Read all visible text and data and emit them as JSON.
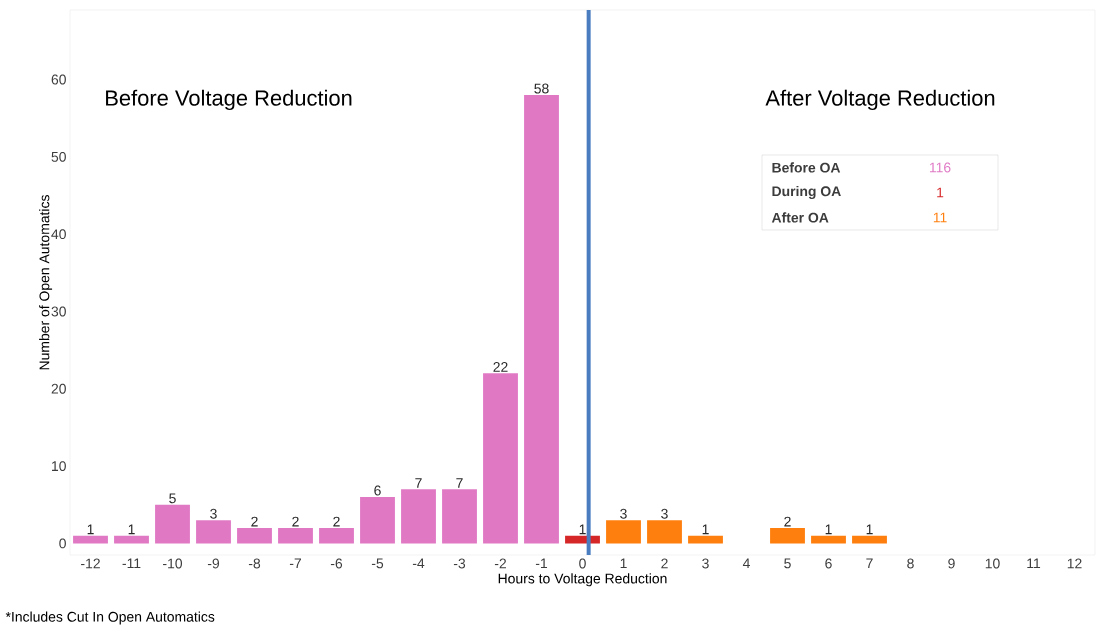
{
  "chart_data": {
    "type": "bar",
    "xlabel": "Hours to Voltage Reduction",
    "ylabel": "Number of Open Automatics",
    "x": [
      -12,
      -11,
      -10,
      -9,
      -8,
      -7,
      -6,
      -5,
      -4,
      -3,
      -2,
      -1,
      0,
      1,
      2,
      3,
      4,
      5,
      6,
      7
    ],
    "values": [
      1,
      1,
      5,
      3,
      2,
      2,
      2,
      6,
      7,
      7,
      22,
      58,
      1,
      3,
      3,
      1,
      null,
      2,
      1,
      1
    ],
    "colors": [
      "#e078c4",
      "#e078c4",
      "#e078c4",
      "#e078c4",
      "#e078c4",
      "#e078c4",
      "#e078c4",
      "#e078c4",
      "#e078c4",
      "#e078c4",
      "#e078c4",
      "#e078c4",
      "#d62728",
      "#ff7f0e",
      "#ff7f0e",
      "#ff7f0e",
      "#ff7f0e",
      "#ff7f0e",
      "#ff7f0e",
      "#ff7f0e"
    ],
    "xlim": [
      -12.5,
      12.5
    ],
    "xticks": [
      -12,
      -11,
      -10,
      -9,
      -8,
      -7,
      -6,
      -5,
      -4,
      -3,
      -2,
      -1,
      0,
      1,
      2,
      3,
      4,
      5,
      6,
      7,
      8,
      9,
      10,
      11,
      12
    ],
    "ylim": [
      -1.5,
      69
    ],
    "yticks": [
      0,
      10,
      20,
      30,
      40,
      50,
      60
    ],
    "data_labels": true,
    "grid": false,
    "ref_lines": [
      {
        "axis": "x",
        "value": 0.15,
        "color": "#4a7cc0"
      }
    ],
    "annotations": [
      "Before Voltage Reduction",
      "After Voltage Reduction",
      "Before OA",
      "116",
      "During OA",
      "1",
      "After OA",
      "11",
      "*Includes Cut In Open Automatics"
    ]
  }
}
